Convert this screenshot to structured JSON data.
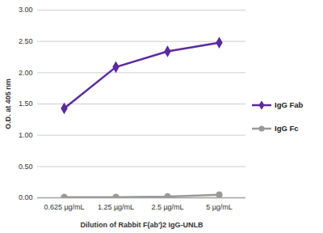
{
  "chart_data": {
    "type": "line",
    "x_label": "Dilution of Rabbit F(ab')2 IgG-UNLB",
    "y_label": "O.D. at 405 nm",
    "categories": [
      "0.625 µg/mL",
      "1.25 µg/mL",
      "2.5 µg/mL",
      "5 µg/mL"
    ],
    "series": [
      {
        "name": "IgG Fab",
        "color": "#5b2a9e",
        "marker": "diamond",
        "values": [
          1.43,
          2.09,
          2.34,
          2.48
        ]
      },
      {
        "name": "IgG Fc",
        "color": "#999999",
        "marker": "circle",
        "values": [
          0.01,
          0.01,
          0.02,
          0.05
        ]
      }
    ],
    "ylim": [
      0,
      3
    ],
    "yticks": [
      {
        "value": 0,
        "label": "0.00"
      },
      {
        "value": 0.5,
        "label": "0.50"
      },
      {
        "value": 1,
        "label": "1.00"
      },
      {
        "value": 1.5,
        "label": "1.50"
      },
      {
        "value": 2,
        "label": "2.00"
      },
      {
        "value": 2.5,
        "label": "2.50"
      },
      {
        "value": 3,
        "label": "3.00"
      }
    ],
    "grid": true,
    "legend": "right"
  }
}
